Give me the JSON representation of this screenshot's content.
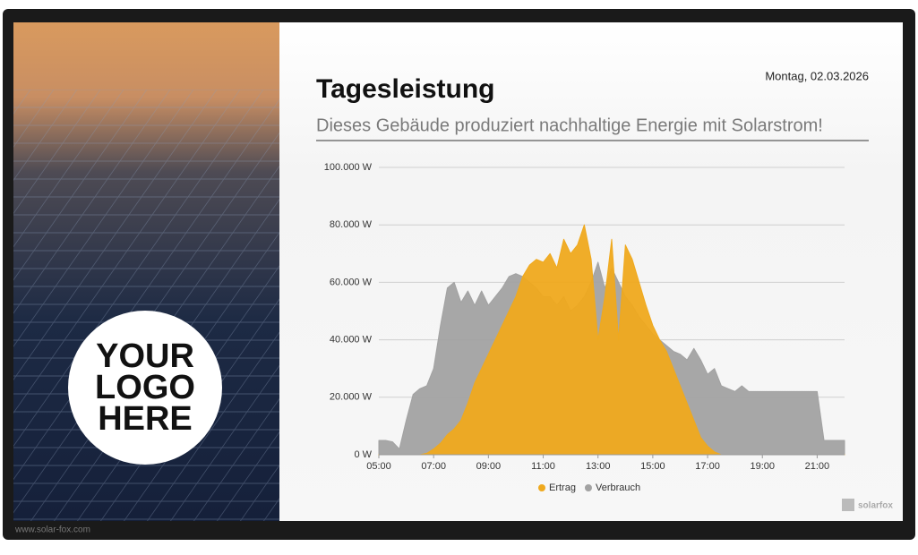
{
  "page": {
    "date": "Montag, 02.03.2026",
    "logo_text": [
      "YOUR",
      "LOGO",
      "HERE"
    ],
    "footer_url": "www.solar-fox.com",
    "brand": "solarfox"
  },
  "chart_data": {
    "type": "area",
    "title": "Tagesleistung",
    "subtitle": "Dieses Gebäude produziert nachhaltige Energie mit Solarstrom!",
    "x": [
      5,
      5.25,
      5.5,
      5.75,
      6,
      6.25,
      6.5,
      6.75,
      7,
      7.25,
      7.5,
      7.75,
      8,
      8.25,
      8.5,
      8.75,
      9,
      9.25,
      9.5,
      9.75,
      10,
      10.25,
      10.5,
      10.75,
      11,
      11.25,
      11.5,
      11.75,
      12,
      12.25,
      12.5,
      12.75,
      13,
      13.25,
      13.5,
      13.75,
      14,
      14.25,
      14.5,
      14.75,
      15,
      15.25,
      15.5,
      15.75,
      16,
      16.25,
      16.5,
      16.75,
      17,
      17.25,
      17.5,
      17.75,
      18,
      18.25,
      18.5,
      18.75,
      19,
      19.25,
      19.5,
      19.75,
      20,
      20.25,
      20.5,
      20.75,
      21,
      21.25,
      21.5,
      21.75,
      22
    ],
    "xlim": [
      5,
      22
    ],
    "xticks": [
      {
        "value": 5,
        "label": "05:00"
      },
      {
        "value": 7,
        "label": "07:00"
      },
      {
        "value": 9,
        "label": "09:00"
      },
      {
        "value": 11,
        "label": "11:00"
      },
      {
        "value": 13,
        "label": "13:00"
      },
      {
        "value": 15,
        "label": "15:00"
      },
      {
        "value": 17,
        "label": "17:00"
      },
      {
        "value": 19,
        "label": "19:00"
      },
      {
        "value": 21,
        "label": "21:00"
      }
    ],
    "ylim": [
      0,
      100000
    ],
    "yticks": [
      {
        "value": 0,
        "label": "0 W"
      },
      {
        "value": 20000,
        "label": "20.000 W"
      },
      {
        "value": 40000,
        "label": "40.000 W"
      },
      {
        "value": 60000,
        "label": "60.000 W"
      },
      {
        "value": 80000,
        "label": "80.000 W"
      },
      {
        "value": 100000,
        "label": "100.000 W"
      }
    ],
    "grid": true,
    "series": [
      {
        "name": "Ertrag",
        "color": "#efa91e",
        "values": [
          0,
          0,
          0,
          0,
          0,
          0,
          0,
          500,
          2000,
          4000,
          7000,
          9000,
          12000,
          18000,
          25000,
          30000,
          35000,
          40000,
          45000,
          50000,
          55000,
          62000,
          66000,
          68000,
          67000,
          70000,
          65000,
          75000,
          70000,
          73000,
          80000,
          68000,
          40000,
          55000,
          75000,
          40000,
          73000,
          68000,
          60000,
          52000,
          45000,
          40000,
          36000,
          30000,
          24000,
          18000,
          12000,
          6000,
          3000,
          1000,
          0,
          0,
          0,
          0,
          0,
          0,
          0,
          0,
          0,
          0,
          0,
          0,
          0,
          0,
          0,
          0,
          0,
          0,
          0
        ]
      },
      {
        "name": "Verbrauch",
        "color": "#a2a2a2",
        "values": [
          5000,
          5000,
          4500,
          2000,
          12000,
          21000,
          23000,
          24000,
          30000,
          45000,
          58000,
          60000,
          53000,
          57000,
          52000,
          57000,
          52000,
          55000,
          58000,
          62000,
          63000,
          62000,
          60000,
          58000,
          55000,
          55000,
          52000,
          55000,
          50000,
          52000,
          55000,
          60000,
          67000,
          58000,
          65000,
          60000,
          55000,
          52000,
          48000,
          45000,
          42000,
          40000,
          38000,
          36000,
          35000,
          33000,
          37000,
          33000,
          28000,
          30000,
          24000,
          23000,
          22000,
          24000,
          22000,
          22000,
          22000,
          22000,
          22000,
          22000,
          22000,
          22000,
          22000,
          22000,
          22000,
          5000,
          5000,
          5000,
          5000
        ]
      }
    ]
  }
}
